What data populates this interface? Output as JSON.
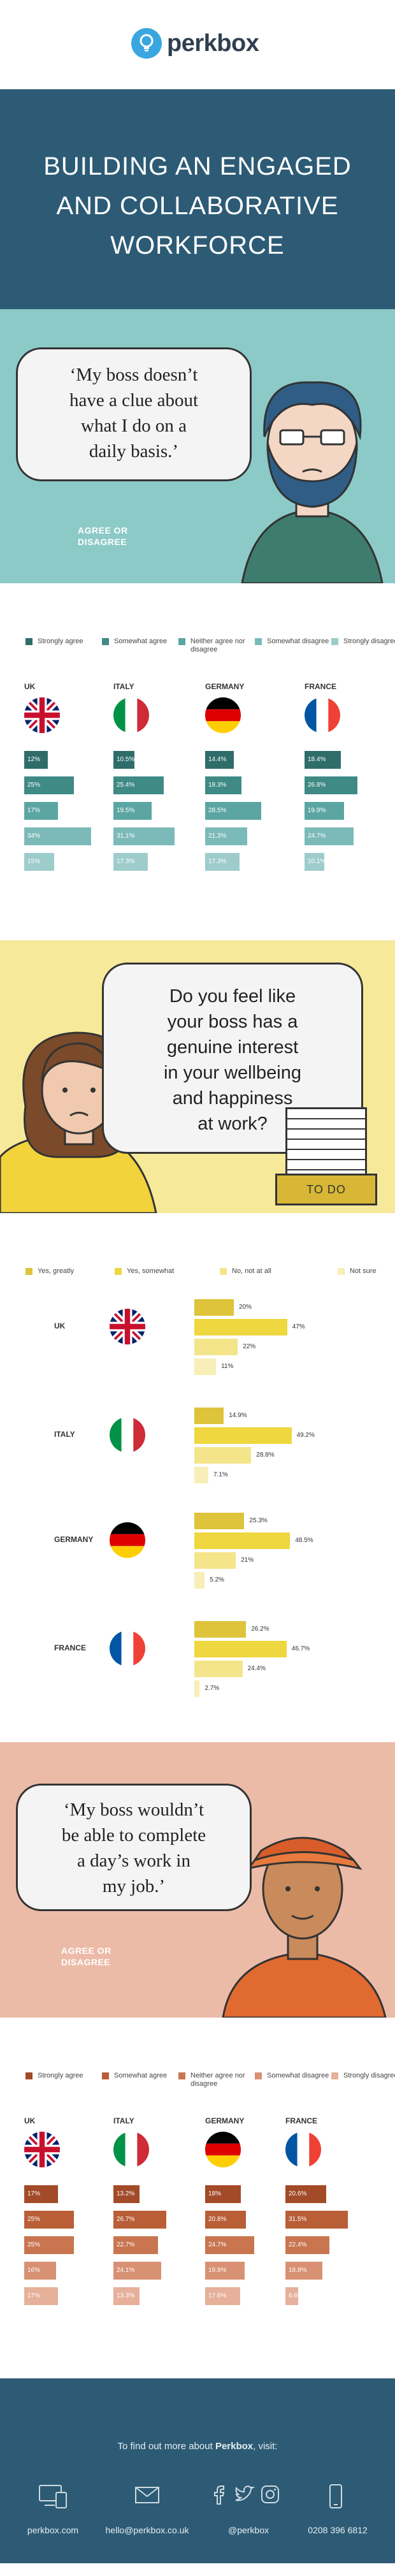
{
  "header": {
    "logo_text": "perkbox"
  },
  "title": {
    "lines": [
      "BUILDING AN ENGAGED",
      "AND COLLABORATIVE",
      "WORKFORCE"
    ]
  },
  "q1": {
    "quote_lines": [
      "‘My boss doesn’t",
      "have a clue about",
      "what I do on a",
      "daily basis.’"
    ],
    "agree_lines": [
      "AGREE OR",
      "DISAGREE"
    ]
  },
  "q2": {
    "quote_lines": [
      "Do you feel like",
      "your boss has a",
      "genuine interest",
      "in your wellbeing",
      "and happiness",
      "at work?"
    ],
    "tray_label": "TO DO"
  },
  "q3": {
    "quote_lines": [
      "‘My boss wouldn’t",
      "be able to complete",
      "a day’s work in",
      "my job.’"
    ],
    "agree_lines": [
      "AGREE OR",
      "DISAGREE"
    ]
  },
  "chart_data": [
    {
      "type": "bar",
      "legend": [
        "Strongly agree",
        "Somewhat agree",
        "Neither agree nor disagree",
        "Somewhat disagree",
        "Strongly disagree"
      ],
      "colors": [
        "#2f6d6a",
        "#3f8a85",
        "#5ba6a3",
        "#7bbab8",
        "#9dcccb"
      ],
      "categories": [
        "UK",
        "ITALY",
        "GERMANY",
        "FRANCE"
      ],
      "values": [
        [
          "12%",
          "25%",
          "17%",
          "34%",
          "15%"
        ],
        [
          "10.5%",
          "25.4%",
          "19.5%",
          "31.1%",
          "17.3%"
        ],
        [
          "14.4%",
          "18.3%",
          "28.5%",
          "21.3%",
          "17.3%"
        ],
        [
          "18.4%",
          "26.8%",
          "19.9%",
          "24.7%",
          "10.1%"
        ]
      ]
    },
    {
      "type": "bar",
      "legend": [
        "Yes, greatly",
        "Yes, somewhat",
        "No, not at all",
        "Not sure"
      ],
      "colors": [
        "#ddc43a",
        "#eed73f",
        "#f4e58a",
        "#f8efb8"
      ],
      "categories": [
        "UK",
        "ITALY",
        "GERMANY",
        "FRANCE"
      ],
      "values": [
        [
          "20%",
          "47%",
          "22%",
          "11%"
        ],
        [
          "14.9%",
          "49.2%",
          "28.8%",
          "7.1%"
        ],
        [
          "25.3%",
          "48.5%",
          "21%",
          "5.2%"
        ],
        [
          "26.2%",
          "46.7%",
          "24.4%",
          "2.7%"
        ]
      ]
    },
    {
      "type": "bar",
      "legend": [
        "Strongly agree",
        "Somewhat agree",
        "Neither agree nor disagree",
        "Somewhat disagree",
        "Strongly disagree"
      ],
      "colors": [
        "#a34a28",
        "#b95e36",
        "#c87550",
        "#d89173",
        "#e6b09a"
      ],
      "categories": [
        "UK",
        "ITALY",
        "GERMANY",
        "FRANCE"
      ],
      "values": [
        [
          "17%",
          "25%",
          "25%",
          "16%",
          "17%"
        ],
        [
          "13.2%",
          "26.7%",
          "22.7%",
          "24.1%",
          "13.3%"
        ],
        [
          "18%",
          "20.8%",
          "24.7%",
          "19.9%",
          "17.6%"
        ],
        [
          "20.6%",
          "31.5%",
          "22.4%",
          "18.8%",
          "6.6%"
        ]
      ]
    }
  ],
  "footer": {
    "info_prefix": "To find out more about ",
    "info_brand": "Perkbox",
    "info_suffix": ", visit:",
    "links": [
      "perkbox.com",
      "hello@perkbox.co.uk",
      "@perkbox",
      "0208 396 6812"
    ]
  }
}
